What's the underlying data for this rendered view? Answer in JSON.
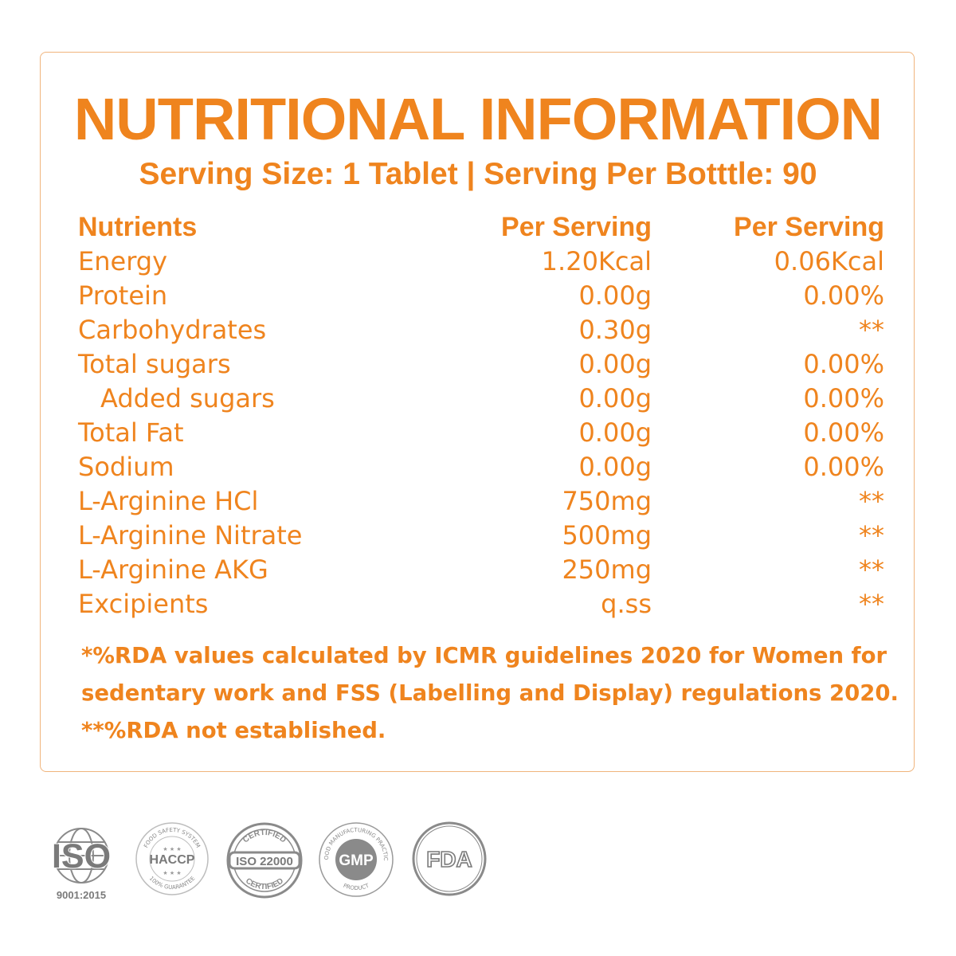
{
  "title": "NUTRITIONAL INFORMATION",
  "subtitle": "Serving Size: 1 Tablet | Serving Per Botttle: 90",
  "table": {
    "headers": [
      "Nutrients",
      "Per Serving",
      "Per Serving"
    ],
    "rows": [
      {
        "nutrient": "Energy",
        "per_serving": "1.20Kcal",
        "rda": "0.06Kcal",
        "indent": false
      },
      {
        "nutrient": "Protein",
        "per_serving": "0.00g",
        "rda": "0.00%",
        "indent": false
      },
      {
        "nutrient": "Carbohydrates",
        "per_serving": "0.30g",
        "rda": "**",
        "indent": false
      },
      {
        "nutrient": "Total sugars",
        "per_serving": "0.00g",
        "rda": "0.00%",
        "indent": false
      },
      {
        "nutrient": "Added sugars",
        "per_serving": "0.00g",
        "rda": "0.00%",
        "indent": true
      },
      {
        "nutrient": "Total Fat",
        "per_serving": "0.00g",
        "rda": "0.00%",
        "indent": false
      },
      {
        "nutrient": "Sodium",
        "per_serving": "0.00g",
        "rda": "0.00%",
        "indent": false
      },
      {
        "nutrient": "L-Arginine HCl",
        "per_serving": "750mg",
        "rda": "**",
        "indent": false
      },
      {
        "nutrient": "L-Arginine Nitrate",
        "per_serving": "500mg",
        "rda": "**",
        "indent": false
      },
      {
        "nutrient": "L-Arginine AKG",
        "per_serving": "250mg",
        "rda": "**",
        "indent": false
      },
      {
        "nutrient": "Excipients",
        "per_serving": "q.ss",
        "rda": "**",
        "indent": false
      }
    ]
  },
  "notes": [
    "*%RDA values calculated by ICMR guidelines 2020 for Women for",
    "sedentary work and FSS (Labelling and Display) regulations 2020.",
    "**%RDA not established."
  ],
  "badges": {
    "iso": {
      "label": "ISO",
      "sub": "9001:2015"
    },
    "haccp": {
      "label": "HACCP",
      "ring_top": "FOOD SAFETY SYSTEM",
      "ring_bottom": "100% GUARANTEE"
    },
    "iso22000": {
      "label": "ISO 22000",
      "ring_top": "CERTIFIED",
      "ring_bottom": "CERTIFIED"
    },
    "gmp": {
      "label": "GMP",
      "ring_top": "GOOD MANUFACTURING PRACTICE",
      "ring_bottom": "PRODUCT"
    },
    "fda": {
      "label": "FDA"
    }
  },
  "colors": {
    "accent": "#EF841E",
    "badge_gray": "#8A8A8A",
    "border": "#F0B47C"
  }
}
